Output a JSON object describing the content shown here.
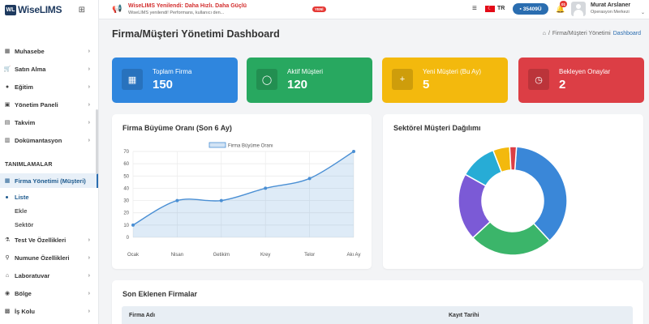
{
  "app": {
    "logo_mark": "WL",
    "logo_text": "WiseLIMS"
  },
  "sidebar": {
    "items_top": [
      {
        "label": "Muhasebe",
        "icon": "calculator-icon",
        "glyph": "▦"
      },
      {
        "label": "Satın Alma",
        "icon": "cart-icon",
        "glyph": "🛒"
      },
      {
        "label": "Eğitim",
        "icon": "education-icon",
        "glyph": "●"
      },
      {
        "label": "Yönetim Paneli",
        "icon": "panel-icon",
        "glyph": "▣"
      },
      {
        "label": "Takvim",
        "icon": "calendar-icon",
        "glyph": "▤"
      },
      {
        "label": "Dokümantasyon",
        "icon": "document-icon",
        "glyph": "▥"
      }
    ],
    "section_label": "TANIMLAMALAR",
    "active_item": {
      "label": "Firma Yönetimi (Müşteri)",
      "icon": "company-icon",
      "glyph": "▦"
    },
    "sub_items": [
      "Liste",
      "Ekle",
      "Sektör"
    ],
    "items_bottom": [
      {
        "label": "Test Ve Özellikleri",
        "icon": "test-icon",
        "glyph": "⚗"
      },
      {
        "label": "Numune Özellikleri",
        "icon": "sample-icon",
        "glyph": "⚲"
      },
      {
        "label": "Laboratuvar",
        "icon": "lab-icon",
        "glyph": "⌂"
      },
      {
        "label": "Bölge",
        "icon": "location-icon",
        "glyph": "◉"
      },
      {
        "label": "İş Kolu",
        "icon": "briefcase-icon",
        "glyph": "▩"
      }
    ]
  },
  "topbar": {
    "announce_title": "WiseLIMS Yenilendi: Daha Hızlı. Daha Güçlü",
    "announce_sub": "WiseLIMS yenilendi! Performans, kullanıcı den...",
    "new_badge": "YENİ",
    "lang": "TR",
    "credit": "35409Ü",
    "notif_count": "01",
    "user_name": "Murat Arslaner",
    "user_role": "Operasyon Merkezi"
  },
  "page": {
    "title": "Firma/Müşteri Yönetimi Dashboard",
    "breadcrumb_sep": "/",
    "breadcrumb_parent": "Firma/Müşteri Yönetimi",
    "breadcrumb_current": "Dashboard"
  },
  "stats": [
    {
      "label": "Toplam Firma",
      "value": "150",
      "color": "#2f86de",
      "icon": "building-icon",
      "glyph": "▦"
    },
    {
      "label": "Aktif Müşteri",
      "value": "120",
      "color": "#28a860",
      "icon": "user-icon",
      "glyph": "◯"
    },
    {
      "label": "Yeni Müşteri (Bu Ay)",
      "value": "5",
      "color": "#f3b90d",
      "icon": "plus-icon",
      "glyph": "+"
    },
    {
      "label": "Bekleyen Onaylar",
      "value": "2",
      "color": "#dc3e45",
      "icon": "clock-icon",
      "glyph": "◷"
    }
  ],
  "growth_panel_title": "Firma Büyüme Oranı (Son 6 Ay)",
  "sector_panel_title": "Sektörel Müşteri Dağılımı",
  "chart_data": [
    {
      "type": "line",
      "title": "Firma Büyüme Oranı (Son 6 Ay)",
      "categories": [
        "Ocak",
        "Nisan",
        "Getikim",
        "Krey",
        "Telor",
        "Akı Ay"
      ],
      "yticks": [
        0,
        10,
        20,
        30,
        40,
        50,
        60,
        70
      ],
      "ylim": [
        0,
        70
      ],
      "series": [
        {
          "name": "Firma Büyüme Oranı",
          "values": [
            10,
            30,
            30,
            40,
            48,
            70
          ]
        }
      ],
      "legend": "top",
      "grid": true,
      "color": "#4a8fd4"
    },
    {
      "type": "pie",
      "title": "Sektörel Müşteri Dağılımı",
      "values": [
        37,
        25,
        20,
        11,
        5,
        2
      ],
      "colors": [
        "#3a87d8",
        "#3bb56a",
        "#7b5ad6",
        "#27acd6",
        "#f3b90d",
        "#dc3e45"
      ]
    }
  ],
  "recent": {
    "title": "Son Eklenen Firmalar",
    "columns": [
      "Firma Adı",
      "Kayıt Tarihi"
    ]
  }
}
